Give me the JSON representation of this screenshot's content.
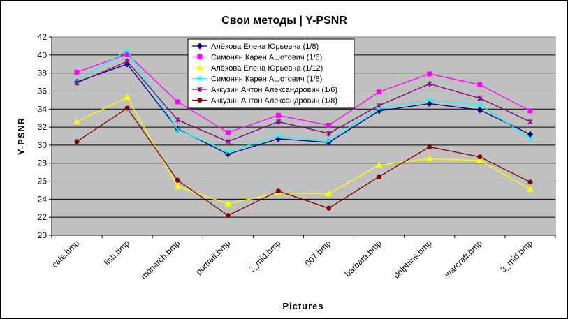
{
  "chart_data": {
    "type": "line",
    "title": "Свои методы | Y-PSNR",
    "xlabel": "Pictures",
    "ylabel": "Y-PSNR",
    "ylim": [
      20,
      42
    ],
    "yticks": [
      20,
      22,
      24,
      26,
      28,
      30,
      32,
      34,
      36,
      38,
      40,
      42
    ],
    "grid": true,
    "legend_position": "top-center",
    "plot_background": "#c0c0c0",
    "categories": [
      "cafe.bmp",
      "fish.bmp",
      "monarch.bmp",
      "portrait.bmp",
      "2_mid.bmp",
      "007.bmp",
      "barbara.bmp",
      "dolphins.bmp",
      "warcraft.bmp",
      "3_mid.bmp"
    ],
    "series": [
      {
        "name": "Алёхова Елена Юрьевна (1/8)",
        "color": "#000080",
        "marker": "diamond",
        "values": [
          37.0,
          39.0,
          31.8,
          29.0,
          30.7,
          30.3,
          33.8,
          34.6,
          33.9,
          31.2
        ]
      },
      {
        "name": "Симонян Карен Ашотович (1/6)",
        "color": "#ff00ff",
        "marker": "square",
        "values": [
          38.1,
          40.1,
          34.8,
          31.4,
          33.3,
          32.2,
          35.9,
          37.9,
          36.7,
          33.8
        ]
      },
      {
        "name": "Алёхова Елена Юрьевна (1/12)",
        "color": "#ffff00",
        "marker": "triangle",
        "values": [
          32.6,
          35.3,
          25.4,
          23.5,
          24.7,
          24.6,
          27.8,
          28.5,
          28.3,
          25.1
        ]
      },
      {
        "name": "Симонян Карен Ашотович (1/8)",
        "color": "#00ffff",
        "marker": "x",
        "values": [
          37.1,
          40.5,
          31.7,
          29.3,
          31.0,
          30.5,
          34.1,
          35.0,
          34.5,
          30.7
        ]
      },
      {
        "name": "Аккузин Антон Александрович (1/6)",
        "color": "#800080",
        "marker": "star",
        "values": [
          36.9,
          39.3,
          32.8,
          30.4,
          32.6,
          31.3,
          34.4,
          36.8,
          35.2,
          32.6
        ]
      },
      {
        "name": "Аккузин Антон Александрович (1/8)",
        "color": "#800000",
        "marker": "circle",
        "values": [
          30.4,
          34.1,
          26.1,
          22.2,
          24.9,
          23.0,
          26.5,
          29.8,
          28.7,
          25.9
        ]
      }
    ]
  }
}
